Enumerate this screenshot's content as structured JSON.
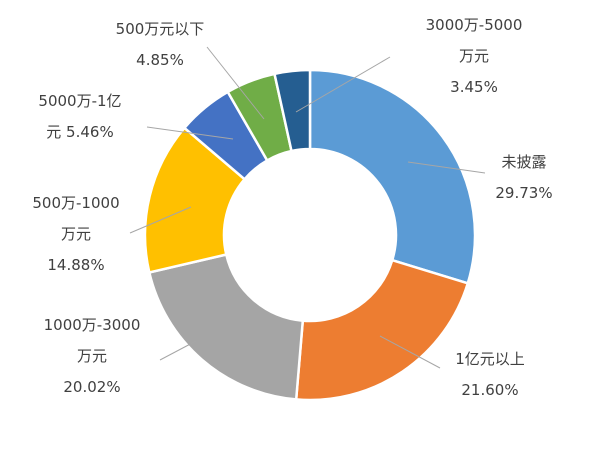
{
  "chart_data": {
    "type": "pie",
    "variant": "donut",
    "title": "",
    "legend": "none",
    "slices": [
      {
        "name": "未披露",
        "label": "未披露",
        "value_label": "29.73%",
        "value": 29.73,
        "color": "#5B9BD5"
      },
      {
        "name": "1亿元以上",
        "label": "1亿元以上",
        "value_label": "21.60%",
        "value": 21.6,
        "color": "#ED7D31"
      },
      {
        "name": "1000万-3000万元",
        "label": "1000万-3000 万元",
        "value_label": "20.02%",
        "value": 20.02,
        "color": "#A5A5A5"
      },
      {
        "name": "500万-1000万元",
        "label": "500万-1000 万元",
        "value_label": "14.88%",
        "value": 14.88,
        "color": "#FFC000"
      },
      {
        "name": "5000万-1亿元",
        "label": "5000万-1亿 元",
        "value_label": "5.46%",
        "value": 5.46,
        "color": "#4472C4"
      },
      {
        "name": "500万元以下",
        "label": "500万元以下",
        "value_label": "4.85%",
        "value": 4.85,
        "color": "#70AD47"
      },
      {
        "name": "3000万-5000万元",
        "label": "3000万-5000 万元",
        "value_label": "3.45%",
        "value": 3.45,
        "color": "#255E91"
      }
    ]
  }
}
